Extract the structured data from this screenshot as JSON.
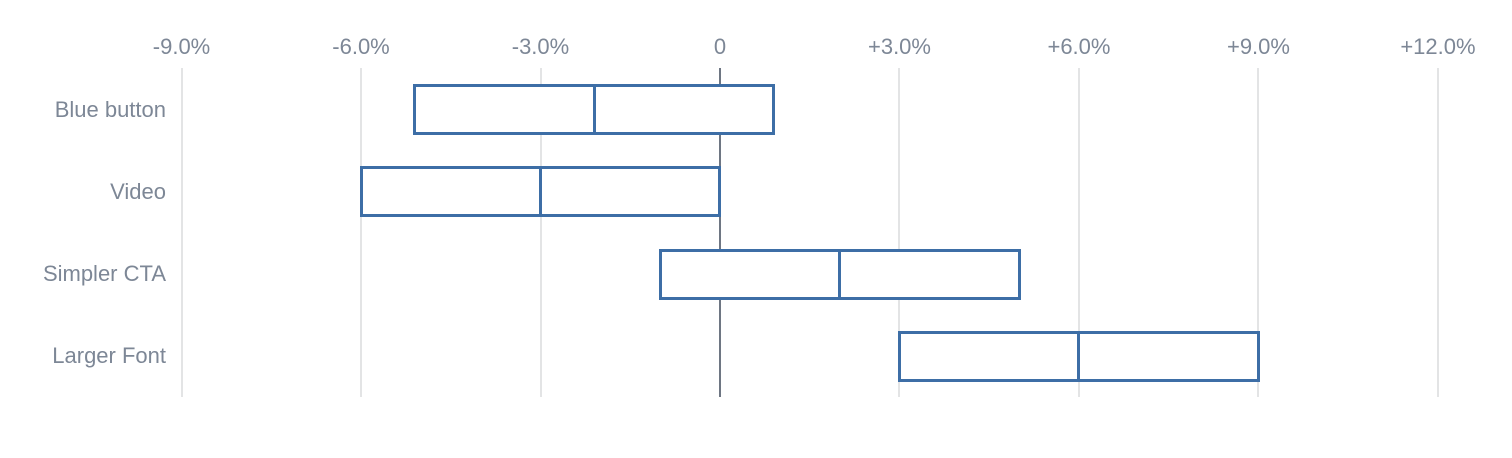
{
  "chart_data": {
    "type": "bar",
    "subtype": "horizontal-range-interval",
    "title": "",
    "xlabel": "",
    "ylabel": "",
    "categories": [
      "Blue button",
      "Video",
      "Simpler CTA",
      "Larger Font"
    ],
    "series": [
      {
        "name": "interval_low",
        "values": [
          -5.1,
          -6.0,
          -1.0,
          3.0
        ]
      },
      {
        "name": "interval_mid",
        "values": [
          -2.1,
          -3.0,
          2.0,
          6.0
        ]
      },
      {
        "name": "interval_high",
        "values": [
          0.9,
          0.0,
          5.0,
          9.0
        ]
      }
    ],
    "unit": "%",
    "xlim": [
      -9.0,
      12.0
    ],
    "x_ticks": [
      -9,
      -6,
      -3,
      0,
      3,
      6,
      9,
      12
    ],
    "x_tick_labels": [
      "-9.0%",
      "-6.0%",
      "-3.0%",
      "0",
      "+3.0%",
      "+6.0%",
      "+9.0%",
      "+12.0%"
    ],
    "grid": true,
    "legend": false
  },
  "colors": {
    "bar_border": "#3d6ea6",
    "bar_fill": "#ffffff",
    "gridline": "#e3e4e5",
    "zero_line": "#6e7683",
    "label_text": "#7d8796",
    "background": "#ffffff"
  }
}
